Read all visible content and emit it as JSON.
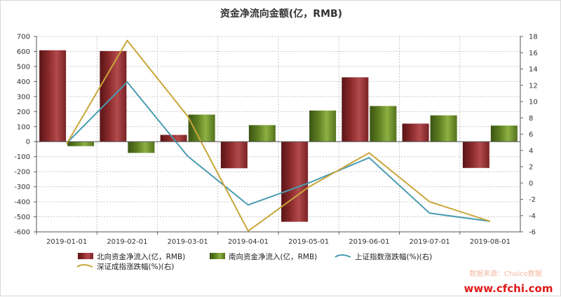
{
  "chart_data": {
    "type": "bar",
    "title": "资金净流向金额(亿，RMB)",
    "categories": [
      "2019-01-01",
      "2019-02-01",
      "2019-03-01",
      "2019-04-01",
      "2019-05-01",
      "2019-06-01",
      "2019-07-01",
      "2019-08-01"
    ],
    "ylim": [
      -600,
      700
    ],
    "yticks": [
      -600,
      -500,
      -400,
      -300,
      -200,
      -100,
      0,
      100,
      200,
      300,
      400,
      500,
      600,
      700
    ],
    "y2lim": [
      -6,
      18
    ],
    "y2ticks": [
      -6,
      -4,
      -2,
      0,
      2,
      4,
      6,
      8,
      10,
      12,
      14,
      16,
      18
    ],
    "grid": true,
    "legend_position": "bottom",
    "series": [
      {
        "name": "北向资金净流入(亿，RMB)",
        "type": "bar",
        "axis": "left",
        "color": "#8b2a2c",
        "values": [
          608,
          603,
          45,
          -177,
          -533,
          428,
          120,
          -175
        ]
      },
      {
        "name": "南向资金净流入(亿，RMB)",
        "type": "bar",
        "axis": "left",
        "color": "#5e7f22",
        "values": [
          -30,
          -75,
          180,
          110,
          207,
          237,
          175,
          107
        ]
      },
      {
        "name": "上证指数涨跌幅(%)(右)",
        "type": "line",
        "axis": "right",
        "color": "#4a9bb1",
        "values": [
          4.9,
          12.4,
          3.3,
          -2.7,
          0,
          3.1,
          -3.7,
          -4.7
        ]
      },
      {
        "name": "深证成指涨跌幅(%)(右)",
        "type": "line",
        "axis": "right",
        "color": "#c9a63a",
        "values": [
          4.8,
          17.5,
          8.2,
          -5.9,
          -0.5,
          3.7,
          -2.3,
          -4.7
        ]
      }
    ]
  },
  "source_text": "数据来源：Choice数据",
  "watermark": "www.cfchi.com"
}
